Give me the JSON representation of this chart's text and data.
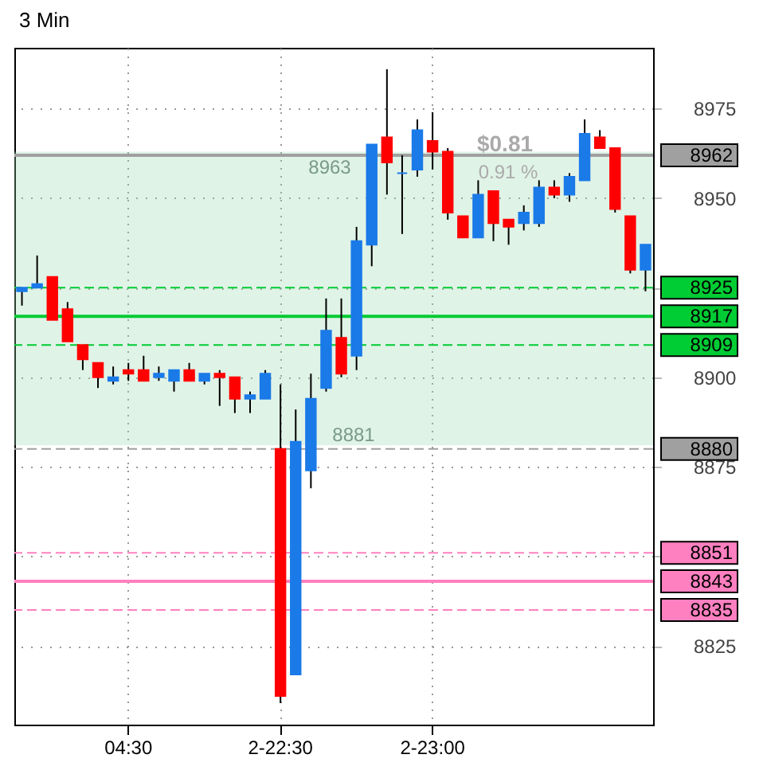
{
  "chart_data": {
    "type": "candlestick",
    "title": "3 Min",
    "categories": [
      null,
      null,
      null,
      null,
      null,
      null,
      null,
      "04:30",
      null,
      null,
      null,
      null,
      null,
      null,
      null,
      null,
      null,
      "2-22:30",
      null,
      null,
      null,
      null,
      null,
      null,
      null,
      null,
      null,
      "2-23:00",
      null,
      null,
      null,
      null,
      null,
      null,
      null,
      null,
      null,
      null,
      null,
      null,
      null,
      null
    ],
    "ohlc": [
      [
        8924,
        8925,
        8920,
        8925
      ],
      [
        8925,
        8934,
        8925,
        8926
      ],
      [
        8928,
        8928,
        8916,
        8916
      ],
      [
        8919,
        8921,
        8910,
        8910
      ],
      [
        8909,
        8909,
        8902,
        8905
      ],
      [
        8904,
        8904,
        8897,
        8900
      ],
      [
        8899,
        8903,
        8898,
        8900
      ],
      [
        8902,
        8904,
        8899,
        8901
      ],
      [
        8902,
        8906,
        8899,
        8899
      ],
      [
        8900,
        8903,
        8899,
        8901
      ],
      [
        8899,
        8902,
        8896,
        8902
      ],
      [
        8902,
        8904,
        8899,
        8899
      ],
      [
        8899,
        8901,
        8898,
        8901
      ],
      [
        8901,
        8902,
        8892,
        8900
      ],
      [
        8900,
        8900,
        8890,
        8894
      ],
      [
        8894,
        8896,
        8890,
        8895
      ],
      [
        8894,
        8902,
        8894,
        8901
      ],
      [
        8880,
        8898,
        8809,
        8811
      ],
      [
        8817,
        8891,
        8817,
        8882
      ],
      [
        8874,
        8901,
        8869,
        8894
      ],
      [
        8897,
        8922,
        8896,
        8913
      ],
      [
        8911,
        8922,
        8900,
        8901
      ],
      [
        8906,
        8942,
        8902,
        8938
      ],
      [
        8937,
        8965,
        8931,
        8965
      ],
      [
        8967,
        8986,
        8951,
        8960
      ],
      [
        8957,
        8962,
        8940,
        8957
      ],
      [
        8958,
        8972,
        8956,
        8969
      ],
      [
        8966,
        8974,
        8958,
        8963
      ],
      [
        8963,
        8964,
        8944,
        8946
      ],
      [
        8945,
        8945,
        8939,
        8939
      ],
      [
        8939,
        8955,
        8939,
        8951
      ],
      [
        8952,
        8952,
        8938,
        8943
      ],
      [
        8944,
        8944,
        8937,
        8942
      ],
      [
        8943,
        8948,
        8941,
        8946
      ],
      [
        8943,
        8955,
        8942,
        8953
      ],
      [
        8953,
        8955,
        8950,
        8951
      ],
      [
        8951,
        8957,
        8949,
        8956
      ],
      [
        8955,
        8972,
        8955,
        8968
      ],
      [
        8967,
        8969,
        8964,
        8964
      ],
      [
        8964,
        8964,
        8946,
        8947
      ],
      [
        8945,
        8945,
        8929,
        8930
      ],
      [
        8930,
        8937,
        8924,
        8937
      ]
    ],
    "ylim": [
      8803,
      8992
    ],
    "yticks": [
      8825,
      {
        "value": 8850,
        "label": null
      },
      8875,
      8900,
      {
        "value": 8925,
        "label": null
      },
      8950,
      8975
    ],
    "grid": true,
    "ref_lines": [
      {
        "axis": "y",
        "value": 8962,
        "label": "8962",
        "color": "#a0a0a0",
        "line_style": "solid"
      },
      {
        "axis": "y",
        "value": 8925,
        "label": "8925",
        "color": "#00cc33",
        "line_style": "dashed"
      },
      {
        "axis": "y",
        "value": 8917,
        "label": "8917",
        "color": "#00cc33",
        "line_style": "solid"
      },
      {
        "axis": "y",
        "value": 8909,
        "label": "8909",
        "color": "#00cc33",
        "line_style": "dashed"
      },
      {
        "axis": "y",
        "value": 8880,
        "label": "8880",
        "color": "#a0a0a0",
        "line_style": "dashed"
      },
      {
        "axis": "y",
        "value": 8851,
        "label": "8851",
        "color": "#ff80c0",
        "line_style": "dashed"
      },
      {
        "axis": "y",
        "value": 8843,
        "label": "8843",
        "color": "#ff80c0",
        "line_style": "solid"
      },
      {
        "axis": "y",
        "value": 8835,
        "label": "8835",
        "color": "#ff80c0",
        "line_style": "dashed"
      }
    ],
    "bands": [
      {
        "axis": "y",
        "from": 8881,
        "to": 8963,
        "color": "#99d8b0"
      }
    ],
    "annotations": [
      "8963",
      "8881",
      "$0.81",
      "0.91 %"
    ]
  }
}
